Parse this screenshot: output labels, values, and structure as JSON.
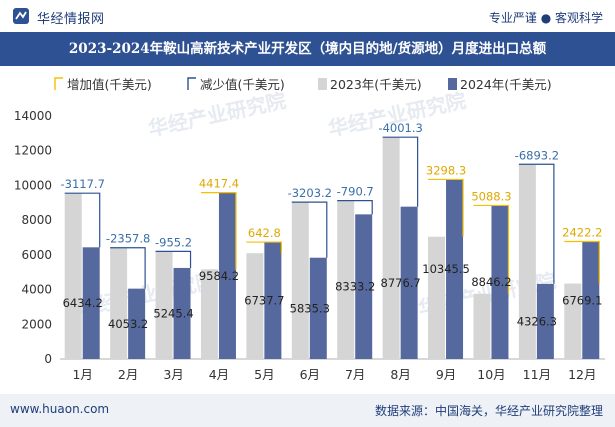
{
  "header": {
    "brand": "华经情报网",
    "tagline": "专业严谨 ● 客观科学",
    "title": "2023-2024年鞍山高新技术产业开发区（境内目的地/货源地）月度进出口总额"
  },
  "footer": {
    "site": "www.huaon.com",
    "source": "数据来源：中国海关，华经产业研究院整理"
  },
  "watermark": "华经产业研究院",
  "colors": {
    "increase": "#f5c000",
    "decrease": "#2d5192",
    "bar2023": "#d5d5d5",
    "bar2024": "#56699e",
    "label_increase": "#e0a800",
    "label_decrease": "#3a6ea8"
  },
  "chart_data": {
    "type": "bar",
    "categories": [
      "1月",
      "2月",
      "3月",
      "4月",
      "5月",
      "6月",
      "7月",
      "8月",
      "9月",
      "10月",
      "11月",
      "12月"
    ],
    "legend": [
      "增加值(千美元)",
      "减少值(千美元)",
      "2023年(千美元)",
      "2024年(千美元)"
    ],
    "series": [
      {
        "name": "2023年(千美元)",
        "values": [
          9552.0,
          6411.0,
          6200.6,
          5166.8,
          6094.9,
          9038.5,
          9124.0,
          12778.0,
          7047.2,
          3757.9,
          11219.5,
          4346.9
        ]
      },
      {
        "name": "2024年(千美元)",
        "values": [
          6434.2,
          4053.2,
          5245.4,
          9584.2,
          6737.7,
          5835.3,
          8333.2,
          8776.7,
          10345.5,
          8846.2,
          4326.3,
          6769.1
        ]
      }
    ],
    "changes": [
      -3117.7,
      -2357.8,
      -955.2,
      4417.4,
      642.8,
      -3203.2,
      -790.7,
      -4001.3,
      3298.3,
      5088.3,
      -6893.2,
      2422.2
    ],
    "change_labels": [
      "-3117.7",
      "-2357.8",
      "-955.2",
      "4417.4",
      "642.8",
      "-3203.2",
      "-790.7",
      "-4001.3",
      "3298.3",
      "5088.3",
      "-6893.2",
      "2422.2"
    ],
    "value_labels_2024": [
      "6434.2",
      "4053.2",
      "5245.4",
      "9584.2",
      "6737.7",
      "5835.3",
      "8333.2",
      "8776.7",
      "10345.5",
      "8846.2",
      "4326.3",
      "6769.1"
    ],
    "y_ticks": [
      "0",
      "2000",
      "4000",
      "6000",
      "8000",
      "10000",
      "12000",
      "14000"
    ],
    "ylim": [
      0,
      14000
    ],
    "legend_position": "top-left",
    "grid": false
  }
}
